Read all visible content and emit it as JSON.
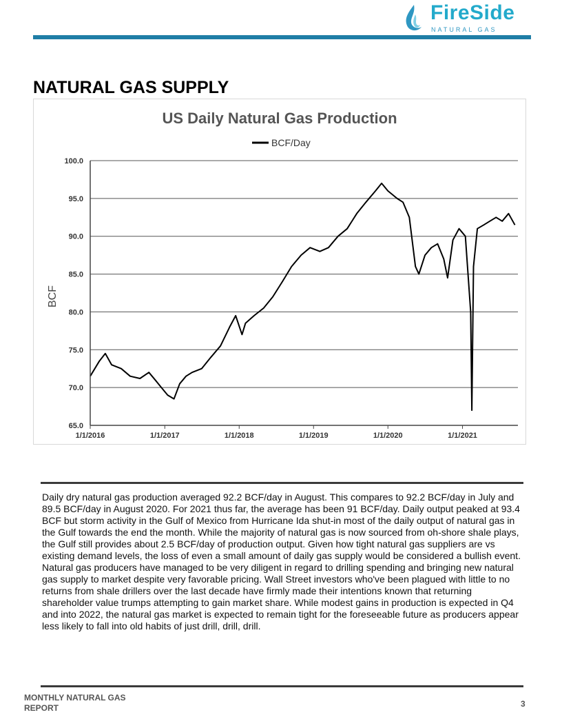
{
  "header": {
    "logo_word": "FireSide",
    "logo_sub": "NATURAL GAS",
    "brand_color": "#23aacb",
    "bar_color": "#1f7ea6"
  },
  "section_title": "NATURAL GAS SUPPLY",
  "chart_data": {
    "type": "line",
    "title": "US Daily Natural Gas Production",
    "ylabel": "BCF",
    "xlabel": "",
    "legend": "top-center",
    "grid": true,
    "ylim": [
      65,
      100
    ],
    "xlim": [
      "2016-01-01",
      "2021-09-30"
    ],
    "y_ticks": [
      "100.0",
      "95.0",
      "90.0",
      "85.0",
      "80.0",
      "75.0",
      "70.0",
      "65.0"
    ],
    "x_ticks": [
      "1/1/2016",
      "1/1/2017",
      "1/1/2018",
      "1/1/2019",
      "1/1/2020",
      "1/1/2021"
    ],
    "series": [
      {
        "name": "BCF/Day",
        "color": "#000000",
        "points": [
          [
            "2016-01-01",
            71.5
          ],
          [
            "2016-02-15",
            73.5
          ],
          [
            "2016-03-15",
            74.5
          ],
          [
            "2016-04-15",
            73.0
          ],
          [
            "2016-06-01",
            72.5
          ],
          [
            "2016-07-15",
            71.5
          ],
          [
            "2016-09-01",
            71.2
          ],
          [
            "2016-10-15",
            72.0
          ],
          [
            "2016-11-15",
            71.0
          ],
          [
            "2016-12-15",
            70.0
          ],
          [
            "2017-01-15",
            69.0
          ],
          [
            "2017-02-15",
            68.5
          ],
          [
            "2017-03-15",
            70.5
          ],
          [
            "2017-04-15",
            71.5
          ],
          [
            "2017-05-15",
            72.0
          ],
          [
            "2017-07-01",
            72.5
          ],
          [
            "2017-08-15",
            74.0
          ],
          [
            "2017-10-01",
            75.5
          ],
          [
            "2017-11-15",
            78.0
          ],
          [
            "2017-12-15",
            79.5
          ],
          [
            "2018-01-15",
            77.0
          ],
          [
            "2018-02-01",
            78.5
          ],
          [
            "2018-03-15",
            79.5
          ],
          [
            "2018-05-01",
            80.5
          ],
          [
            "2018-06-15",
            82.0
          ],
          [
            "2018-08-01",
            84.0
          ],
          [
            "2018-09-15",
            86.0
          ],
          [
            "2018-11-01",
            87.5
          ],
          [
            "2018-12-15",
            88.5
          ],
          [
            "2019-02-01",
            88.0
          ],
          [
            "2019-03-15",
            88.5
          ],
          [
            "2019-05-01",
            90.0
          ],
          [
            "2019-06-15",
            91.0
          ],
          [
            "2019-08-01",
            93.0
          ],
          [
            "2019-09-15",
            94.5
          ],
          [
            "2019-11-01",
            96.0
          ],
          [
            "2019-12-01",
            97.0
          ],
          [
            "2020-01-01",
            96.0
          ],
          [
            "2020-02-15",
            95.0
          ],
          [
            "2020-03-15",
            94.5
          ],
          [
            "2020-04-15",
            92.5
          ],
          [
            "2020-05-15",
            86.0
          ],
          [
            "2020-06-01",
            85.0
          ],
          [
            "2020-07-01",
            87.5
          ],
          [
            "2020-08-01",
            88.5
          ],
          [
            "2020-09-01",
            89.0
          ],
          [
            "2020-10-01",
            87.0
          ],
          [
            "2020-10-20",
            84.5
          ],
          [
            "2020-11-15",
            89.5
          ],
          [
            "2020-12-15",
            91.0
          ],
          [
            "2021-01-15",
            90.0
          ],
          [
            "2021-02-10",
            80.0
          ],
          [
            "2021-02-16",
            67.0
          ],
          [
            "2021-02-24",
            86.0
          ],
          [
            "2021-03-15",
            91.0
          ],
          [
            "2021-04-15",
            91.5
          ],
          [
            "2021-05-15",
            92.0
          ],
          [
            "2021-06-15",
            92.5
          ],
          [
            "2021-07-15",
            92.0
          ],
          [
            "2021-08-15",
            93.0
          ],
          [
            "2021-09-15",
            91.5
          ]
        ]
      }
    ]
  },
  "body_text": "Daily dry natural gas production averaged 92.2 BCF/day in August.  This compares to 92.2 BCF/day in July and 89.5 BCF/day in August 2020.  For 2021 thus far, the average has been 91 BCF/day.  Daily output peaked at 93.4 BCF but storm activity in the Gulf of Mexico from Hurricane Ida shut-in most of the daily output of natural gas in the Gulf towards the end the month.  While the majority of natural gas is now sourced from oh-shore shale plays, the Gulf still provides about 2.5 BCF/day of production output.  Given how tight natural gas suppliers are vs existing demand levels, the loss of even a small amount of daily gas supply would be considered a bullish event.  Natural gas producers have managed to be very diligent in regard to drilling spending and bringing new natural gas supply to market despite very favorable pricing.  Wall Street investors who've been plagued with little to no returns from shale drillers over the last decade have firmly made their intentions known that returning shareholder value trumps attempting to gain market share.  While modest gains in production is expected in Q4 and into 2022, the natural gas market is expected to remain tight for the foreseeable future as producers appear less likely to fall into old habits of just drill, drill, drill.",
  "footer": {
    "label": "MONTHLY NATURAL GAS REPORT",
    "page_number": "3"
  }
}
